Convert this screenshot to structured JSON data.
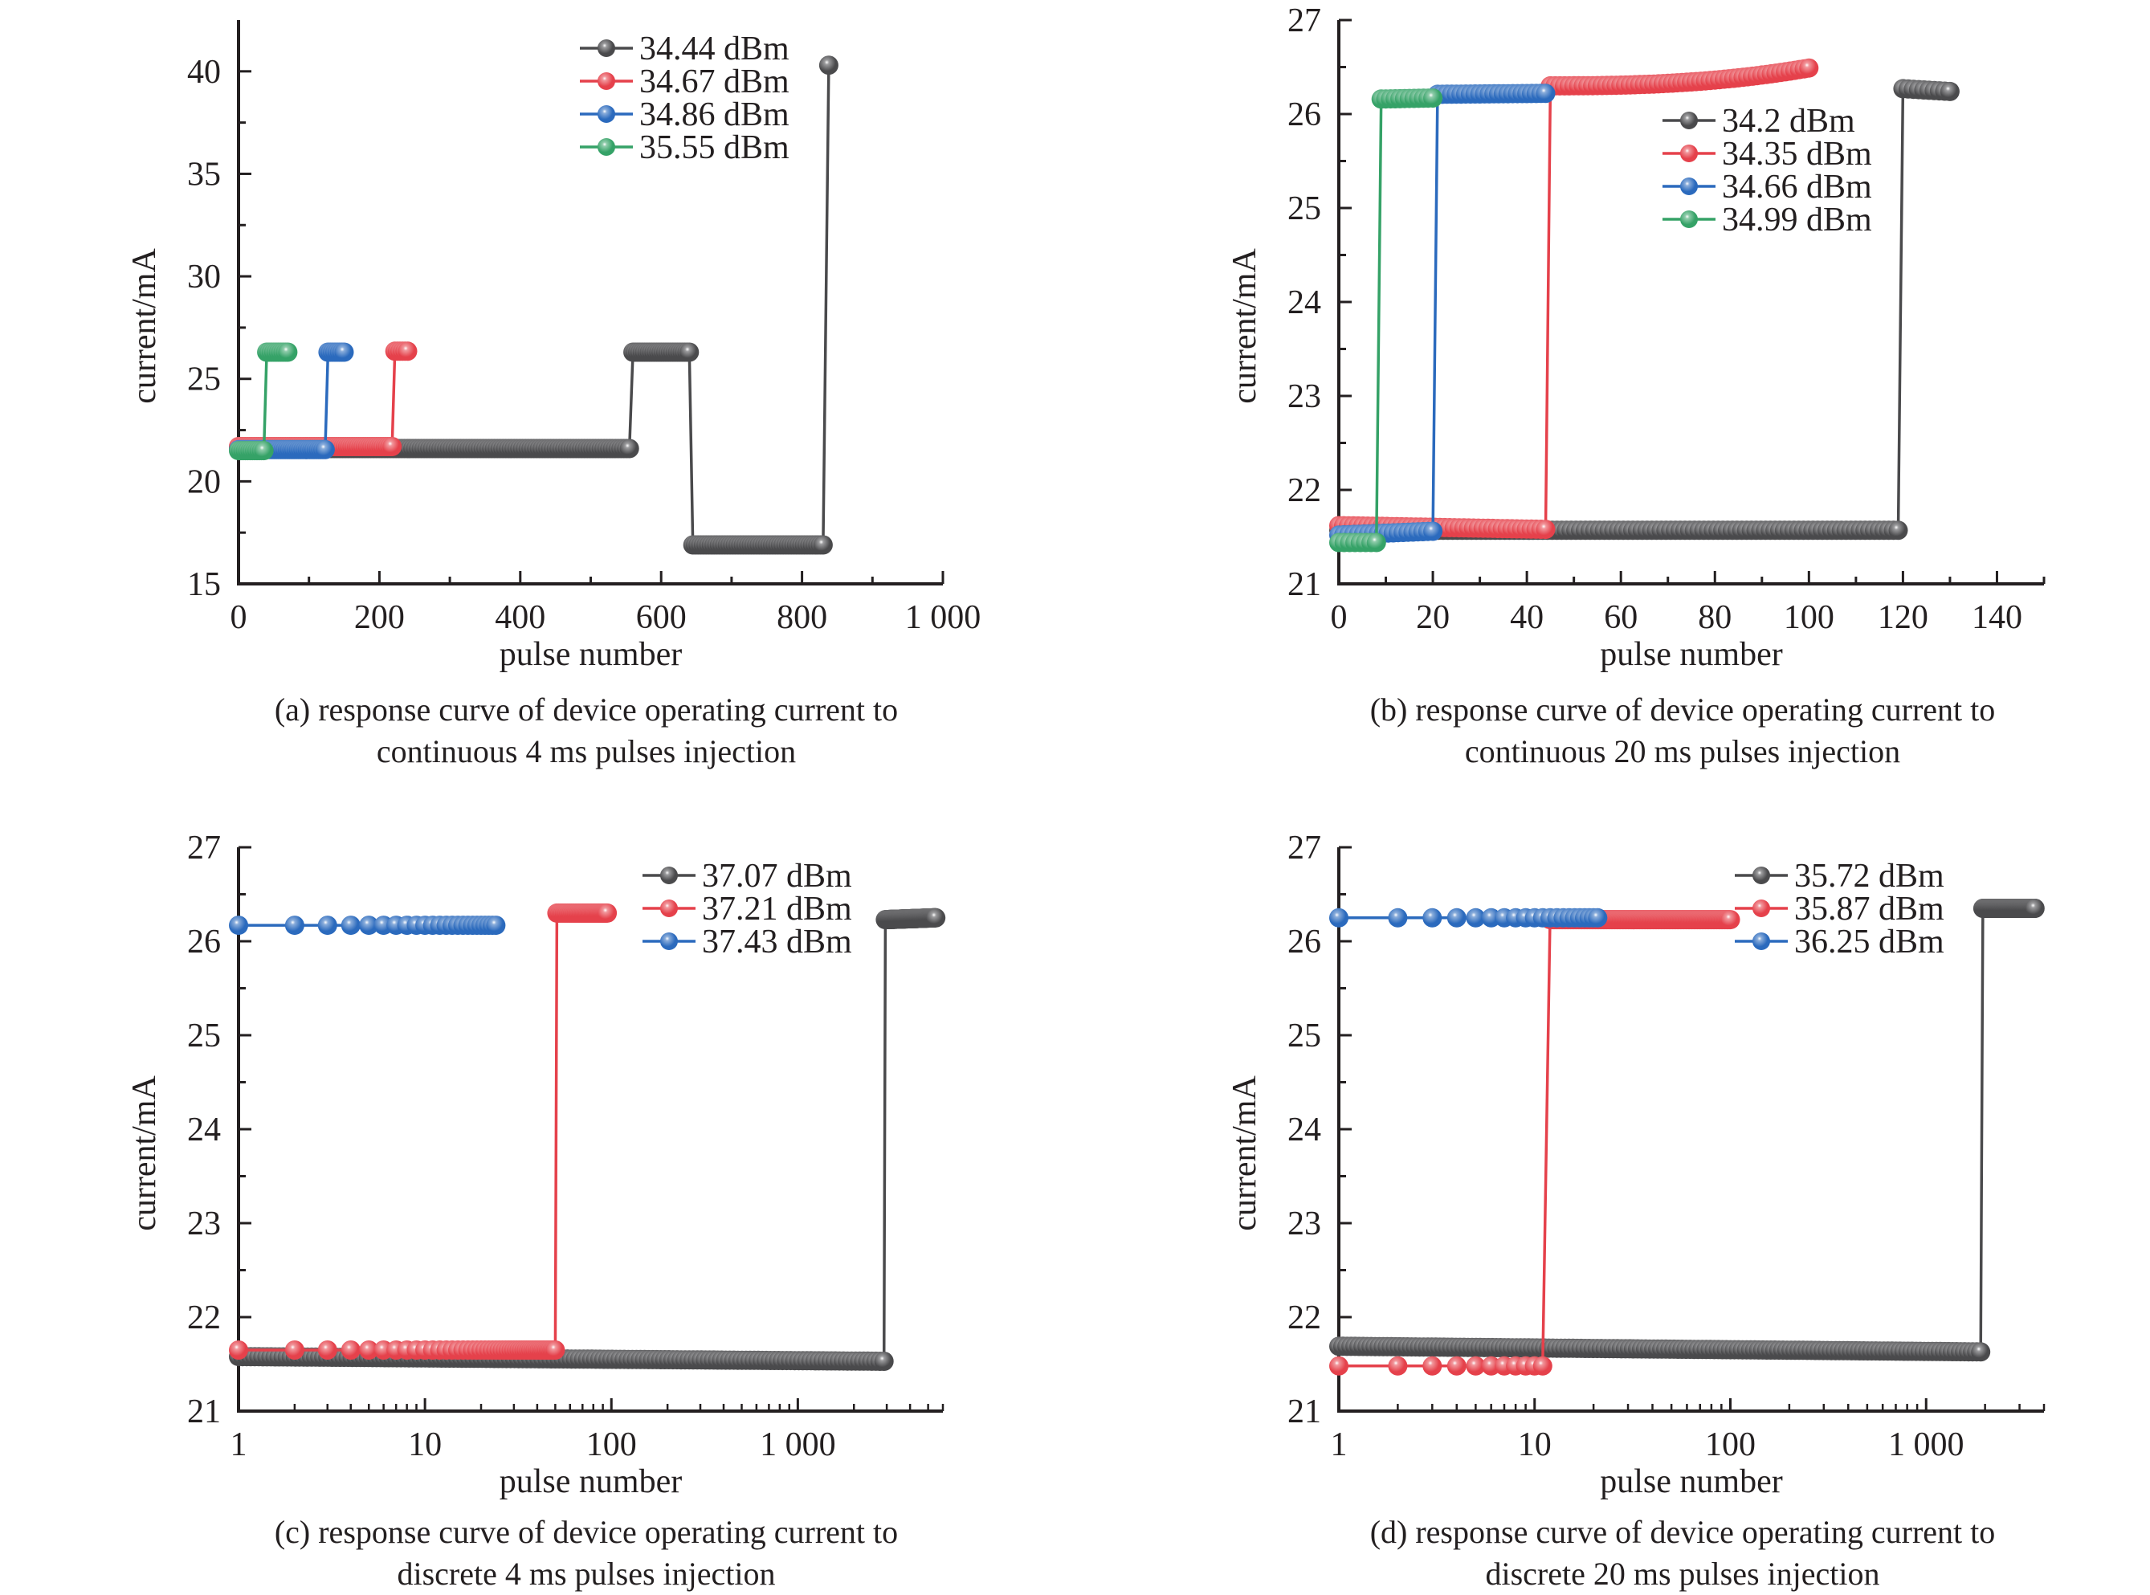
{
  "figure": {
    "captions": [
      {
        "line1": "(a) response curve of device operating current to",
        "line2": "continuous 4 ms pulses injection"
      },
      {
        "line1": "(b) response curve of device operating current to",
        "line2": "continuous 20 ms pulses injection"
      },
      {
        "line1": "(c) response curve of device operating current to",
        "line2": "discrete 4 ms pulses injection"
      },
      {
        "line1": "(d) response curve of device operating current to",
        "line2": "discrete 20 ms pulses injection"
      }
    ]
  },
  "colors": {
    "black": "#4a4a4c",
    "red": "#e5414b",
    "blue": "#2b6abd",
    "green": "#35a267",
    "axis": "#231f20"
  },
  "chart_data": [
    {
      "id": "a",
      "type": "line",
      "xscale": "linear",
      "xlabel": "pulse number",
      "ylabel": "current/mA",
      "xlim": [
        0,
        1000
      ],
      "ylim": [
        15,
        42.5
      ],
      "xticks": [
        0,
        200,
        400,
        600,
        800,
        1000
      ],
      "xtick_labels": [
        "0",
        "200",
        "400",
        "600",
        "800",
        "1 000"
      ],
      "xminor": [
        100,
        300,
        500,
        700,
        900
      ],
      "yticks": [
        15,
        20,
        25,
        30,
        35,
        40
      ],
      "ytick_labels": [
        "15",
        "20",
        "25",
        "30",
        "35",
        "40"
      ],
      "yminor": [
        17.5,
        22.5,
        27.5,
        32.5,
        37.5
      ],
      "grid": false,
      "legend_position": "top-right",
      "series": [
        {
          "name": "34.44 dBm",
          "color": "black",
          "segments": [
            {
              "x0": 0,
              "x1": 555,
              "y0": 21.6,
              "y1": 21.6,
              "n": 140
            },
            {
              "x0": 560,
              "x1": 640,
              "y0": 26.3,
              "y1": 26.3,
              "n": 25
            },
            {
              "x0": 645,
              "x1": 830,
              "y0": 16.9,
              "y1": 16.9,
              "n": 50
            },
            {
              "x0": 838,
              "x1": 838,
              "y0": 40.3,
              "y1": 40.3,
              "n": 1
            }
          ]
        },
        {
          "name": "34.67 dBm",
          "color": "red",
          "segments": [
            {
              "x0": 0,
              "x1": 218,
              "y0": 21.7,
              "y1": 21.7,
              "n": 70
            },
            {
              "x0": 222,
              "x1": 240,
              "y0": 26.35,
              "y1": 26.35,
              "n": 6
            }
          ]
        },
        {
          "name": "34.86 dBm",
          "color": "blue",
          "segments": [
            {
              "x0": 0,
              "x1": 123,
              "y0": 21.55,
              "y1": 21.55,
              "n": 40
            },
            {
              "x0": 127,
              "x1": 150,
              "y0": 26.3,
              "y1": 26.3,
              "n": 8
            }
          ]
        },
        {
          "name": "35.55 dBm",
          "color": "green",
          "segments": [
            {
              "x0": 0,
              "x1": 36,
              "y0": 21.5,
              "y1": 21.5,
              "n": 12
            },
            {
              "x0": 40,
              "x1": 70,
              "y0": 26.3,
              "y1": 26.3,
              "n": 10
            }
          ]
        }
      ]
    },
    {
      "id": "b",
      "type": "line",
      "xscale": "linear",
      "xlabel": "pulse number",
      "ylabel": "current/mA",
      "xlim": [
        0,
        150
      ],
      "ylim": [
        21,
        27
      ],
      "xticks": [
        0,
        20,
        40,
        60,
        80,
        100,
        120,
        140
      ],
      "xtick_labels": [
        "0",
        "20",
        "40",
        "60",
        "80",
        "100",
        "120",
        "140"
      ],
      "xminor": [
        10,
        30,
        50,
        70,
        90,
        110,
        130,
        150
      ],
      "yticks": [
        21,
        22,
        23,
        24,
        25,
        26,
        27
      ],
      "ytick_labels": [
        "21",
        "22",
        "23",
        "24",
        "25",
        "26",
        "27"
      ],
      "yminor": [
        21.5,
        22.5,
        23.5,
        24.5,
        25.5,
        26.5
      ],
      "grid": false,
      "legend_position": "top-right",
      "series": [
        {
          "name": "34.2 dBm",
          "color": "black",
          "segments": [
            {
              "x0": 0,
              "x1": 119,
              "y0": 21.57,
              "y1": 21.57,
              "n": 119
            },
            {
              "x0": 120,
              "x1": 130,
              "y0": 26.27,
              "y1": 26.24,
              "n": 10
            }
          ]
        },
        {
          "name": "34.35 dBm",
          "color": "red",
          "segments": [
            {
              "x0": 0,
              "x1": 44,
              "y0": 21.62,
              "y1": 21.58,
              "n": 44
            },
            {
              "x0": 45,
              "x1": 100,
              "y0": 26.3,
              "y1": 26.49,
              "n": 56,
              "curve": 2.5
            }
          ]
        },
        {
          "name": "34.66 dBm",
          "color": "blue",
          "segments": [
            {
              "x0": 0,
              "x1": 20,
              "y0": 21.52,
              "y1": 21.56,
              "n": 20
            },
            {
              "x0": 21,
              "x1": 44,
              "y0": 26.21,
              "y1": 26.22,
              "n": 24
            }
          ]
        },
        {
          "name": "34.99 dBm",
          "color": "green",
          "segments": [
            {
              "x0": 0,
              "x1": 8,
              "y0": 21.44,
              "y1": 21.44,
              "n": 8
            },
            {
              "x0": 9,
              "x1": 20,
              "y0": 26.16,
              "y1": 26.17,
              "n": 12
            }
          ]
        }
      ]
    },
    {
      "id": "c",
      "type": "line",
      "xscale": "log",
      "xlabel": "pulse number",
      "ylabel": "current/mA",
      "xlim": [
        1,
        6000
      ],
      "ylim": [
        21,
        27
      ],
      "xticks": [
        1,
        10,
        100,
        1000
      ],
      "xtick_labels": [
        "1",
        "10",
        "100",
        "1 000"
      ],
      "yticks": [
        21,
        22,
        23,
        24,
        25,
        26,
        27
      ],
      "ytick_labels": [
        "21",
        "22",
        "23",
        "24",
        "25",
        "26",
        "27"
      ],
      "yminor": [
        21.5,
        22.5,
        23.5,
        24.5,
        25.5,
        26.5
      ],
      "grid": false,
      "legend_position": "top-right",
      "series": [
        {
          "name": "37.07 dBm",
          "color": "black",
          "segments": [
            {
              "x0": 1,
              "x1": 2900,
              "y0": 21.58,
              "y1": 21.53,
              "n": 2900
            },
            {
              "x0": 2950,
              "x1": 5500,
              "y0": 26.23,
              "y1": 26.25,
              "n": 200
            }
          ]
        },
        {
          "name": "37.21 dBm",
          "color": "red",
          "segments": [
            {
              "x0": 1,
              "x1": 50,
              "y0": 21.65,
              "y1": 21.65,
              "n": 50
            },
            {
              "x0": 51,
              "x1": 95,
              "y0": 26.3,
              "y1": 26.3,
              "n": 45
            }
          ]
        },
        {
          "name": "37.43 dBm",
          "color": "blue",
          "segments": [
            {
              "x0": 1,
              "x1": 24,
              "y0": 26.17,
              "y1": 26.17,
              "n": 24
            }
          ]
        }
      ]
    },
    {
      "id": "d",
      "type": "line",
      "xscale": "log",
      "xlabel": "pulse number",
      "ylabel": "current/mA",
      "xlim": [
        1,
        4000
      ],
      "ylim": [
        21,
        27
      ],
      "xticks": [
        1,
        10,
        100,
        1000
      ],
      "xtick_labels": [
        "1",
        "10",
        "100",
        "1 000"
      ],
      "yticks": [
        21,
        22,
        23,
        24,
        25,
        26,
        27
      ],
      "ytick_labels": [
        "21",
        "22",
        "23",
        "24",
        "25",
        "26",
        "27"
      ],
      "yminor": [
        21.5,
        22.5,
        23.5,
        24.5,
        25.5,
        26.5
      ],
      "grid": false,
      "legend_position": "top-right",
      "series": [
        {
          "name": "35.72 dBm",
          "color": "black",
          "segments": [
            {
              "x0": 1,
              "x1": 1900,
              "y0": 21.69,
              "y1": 21.63,
              "n": 1900
            },
            {
              "x0": 1950,
              "x1": 3600,
              "y0": 26.35,
              "y1": 26.35,
              "n": 200
            }
          ]
        },
        {
          "name": "35.87 dBm",
          "color": "red",
          "segments": [
            {
              "x0": 1,
              "x1": 11,
              "y0": 21.48,
              "y1": 21.48,
              "n": 11
            },
            {
              "x0": 12,
              "x1": 100,
              "y0": 26.23,
              "y1": 26.23,
              "n": 89
            }
          ]
        },
        {
          "name": "36.25 dBm",
          "color": "blue",
          "segments": [
            {
              "x0": 1,
              "x1": 21,
              "y0": 26.25,
              "y1": 26.25,
              "n": 21
            }
          ]
        }
      ]
    }
  ]
}
